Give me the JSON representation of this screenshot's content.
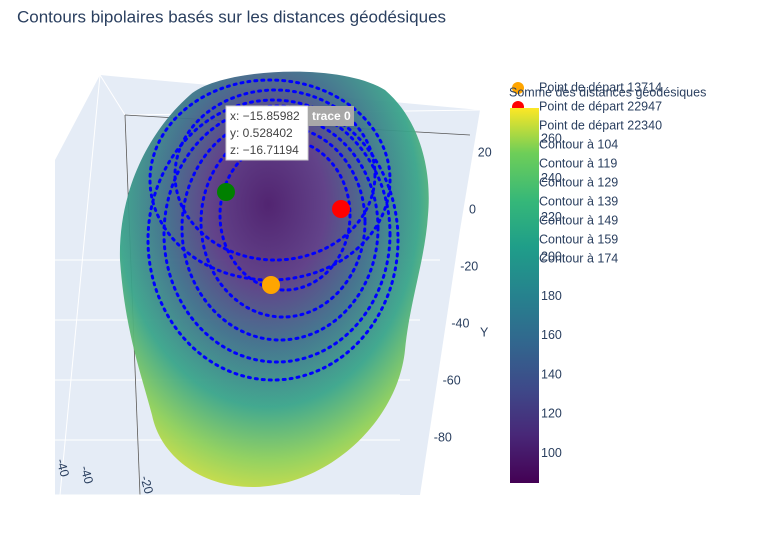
{
  "chart_data": {
    "type": "surface3d",
    "title": "Contours bipolaires basés sur les distances géodésiques",
    "series": [
      {
        "name": "Point de départ 13714",
        "color": "orange"
      },
      {
        "name": "Point de départ 22947",
        "color": "red"
      },
      {
        "name": "Point de départ 22340",
        "color": "green"
      },
      {
        "name": "Contour à 104",
        "color": "blue"
      },
      {
        "name": "Contour à 119",
        "color": "blue"
      },
      {
        "name": "Contour à 129",
        "color": "blue"
      },
      {
        "name": "Contour à 139",
        "color": "blue"
      },
      {
        "name": "Contour à 149",
        "color": "blue"
      },
      {
        "name": "Contour à 159",
        "color": "blue"
      },
      {
        "name": "Contour à 174",
        "color": "blue"
      }
    ],
    "colorbar": {
      "title": "Somme des distances géodésiques",
      "lim": [
        85,
        276
      ],
      "ticks": [
        100,
        120,
        140,
        160,
        180,
        200,
        220,
        240,
        260
      ]
    },
    "yaxis_title": "Y",
    "ylim": [
      -95,
      30
    ],
    "yticks": [
      20,
      0,
      -20,
      -40,
      -60,
      -80
    ],
    "xticks": [
      -40,
      -20
    ],
    "zticks": [
      -40
    ],
    "hover": {
      "lines": [
        "x: −15.85982",
        "y: 0.528402",
        "z: −16.71194"
      ],
      "name": "trace 0"
    }
  }
}
